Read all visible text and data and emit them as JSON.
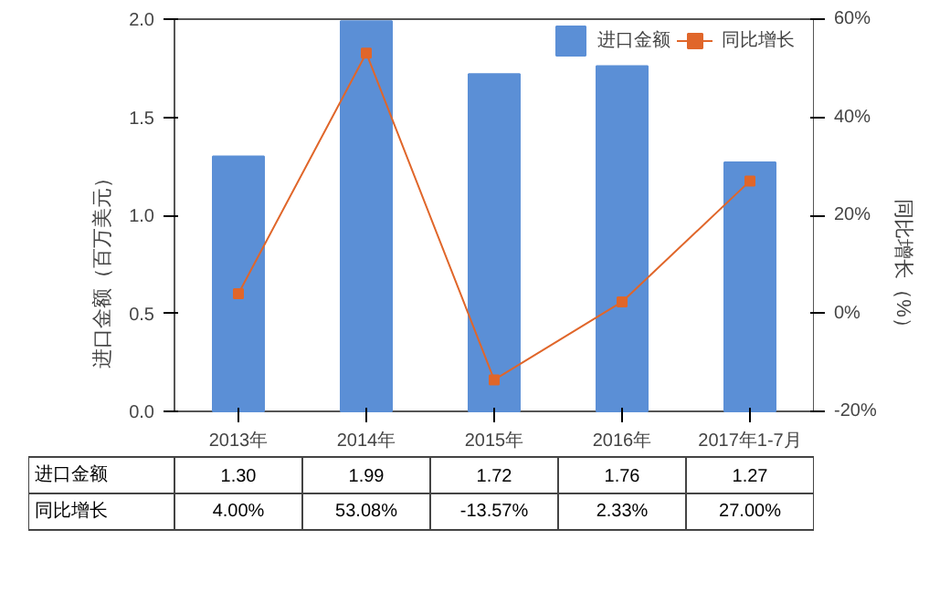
{
  "chart_data": {
    "type": "bar",
    "categories": [
      "2013年",
      "2014年",
      "2015年",
      "2016年",
      "2017年1-7月"
    ],
    "ylabel": "进口金额（百万美元）",
    "y2label": "同比增长（%）",
    "ylim": [
      0,
      2
    ],
    "yticks": [
      {
        "value": 0,
        "label": "0.0"
      },
      {
        "value": 0.5,
        "label": "0.5"
      },
      {
        "value": 1,
        "label": "1.0"
      },
      {
        "value": 1.5,
        "label": "1.5"
      },
      {
        "value": 2,
        "label": "2.0"
      }
    ],
    "y2lim": [
      -20,
      60
    ],
    "y2ticks": [
      {
        "value": -20,
        "label": "-20%"
      },
      {
        "value": 0,
        "label": "0%"
      },
      {
        "value": 20,
        "label": "20%"
      },
      {
        "value": 40,
        "label": "40%"
      },
      {
        "value": 60,
        "label": "60%"
      }
    ],
    "legend": "top right",
    "marker": "square",
    "series": [
      {
        "name": "进口金额",
        "color": "#5b8fd6",
        "values": [
          1.3,
          1.99,
          1.72,
          1.76,
          1.27
        ],
        "value_labels": [
          "1.30",
          "1.99",
          "1.72",
          "1.76",
          "1.27"
        ]
      },
      {
        "name": "同比增长",
        "type": "line",
        "axis": "y2",
        "color": "#e0662a",
        "values": [
          4.0,
          53.08,
          -13.57,
          2.33,
          27.0
        ],
        "value_labels": [
          "4.00%",
          "53.08%",
          "-13.57%",
          "2.33%",
          "27.00%"
        ]
      }
    ]
  }
}
